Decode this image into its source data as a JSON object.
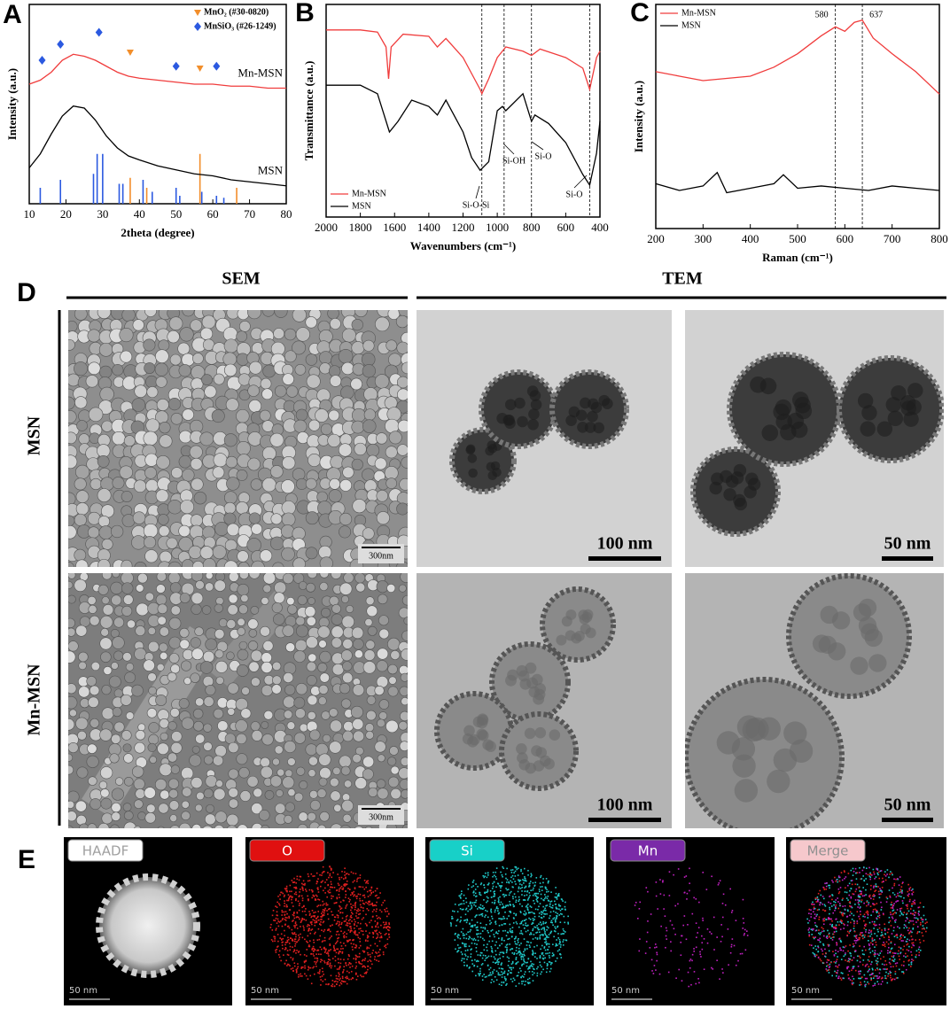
{
  "chart_data": [
    {
      "type": "line",
      "panel": "A",
      "xlabel": "2theta (degree)",
      "ylabel": "Intensity (a.u.)",
      "xlim": [
        10,
        80
      ],
      "xticks": [
        10,
        20,
        30,
        40,
        50,
        60,
        70,
        80
      ],
      "ylim": [
        0,
        100
      ],
      "series": [
        {
          "name": "Mn-MSN",
          "color": "#f03c3c",
          "x": [
            10,
            13,
            16,
            19,
            22,
            25,
            28,
            31,
            34,
            37,
            40,
            45,
            50,
            55,
            60,
            65,
            70,
            75,
            80
          ],
          "values": [
            60,
            62,
            66,
            72,
            75,
            74,
            72,
            69,
            66,
            64,
            63,
            62,
            61,
            60,
            60,
            59,
            59,
            58,
            58
          ]
        },
        {
          "name": "MSN",
          "color": "#000000",
          "x": [
            10,
            13,
            16,
            19,
            22,
            25,
            28,
            31,
            34,
            37,
            40,
            45,
            50,
            55,
            60,
            65,
            70,
            75,
            80
          ],
          "values": [
            18,
            25,
            35,
            44,
            49,
            48,
            42,
            34,
            28,
            24,
            22,
            19,
            17,
            15,
            14,
            12,
            11,
            10,
            9
          ]
        }
      ],
      "references": [
        {
          "name": "MnO₂ (#30-0820)",
          "color": "#f28e2b",
          "marker": "triangle",
          "marker_x": [
            37.5,
            56.5
          ],
          "marker_y": [
            76,
            68
          ],
          "stick_x": [
            37.5,
            42,
            56.5,
            66.5
          ],
          "stick_heights": [
            13,
            8,
            25,
            8
          ]
        },
        {
          "name": "MnSiO₃ (#26-1249)",
          "color": "#2b59e0",
          "marker": "diamond",
          "marker_x": [
            13.5,
            18.5,
            29,
            50,
            61
          ],
          "marker_y": [
            72,
            80,
            86,
            69,
            69
          ],
          "stick_x": [
            13,
            18.5,
            27.5,
            28.5,
            30,
            34.5,
            35.5,
            41,
            43.5,
            50,
            51,
            57,
            61,
            63
          ],
          "stick_heights": [
            8,
            12,
            15,
            25,
            25,
            10,
            10,
            12,
            6,
            8,
            4,
            6,
            4,
            3
          ]
        }
      ]
    },
    {
      "type": "line",
      "panel": "B",
      "xlabel": "Wavenumbers (cm⁻¹)",
      "ylabel": "Transmittance (a.u.)",
      "xlim": [
        2000,
        400
      ],
      "xticks": [
        2000,
        1800,
        1600,
        1400,
        1200,
        1000,
        800,
        600,
        400
      ],
      "ylim": [
        0,
        100
      ],
      "legend": "bottom-left",
      "series": [
        {
          "name": "Mn-MSN",
          "color": "#f03c3c",
          "x": [
            2000,
            1800,
            1700,
            1650,
            1635,
            1620,
            1550,
            1400,
            1350,
            1300,
            1200,
            1100,
            1090,
            1050,
            1000,
            950,
            850,
            800,
            750,
            600,
            500,
            460,
            420,
            400
          ],
          "values": [
            88,
            88,
            87,
            80,
            65,
            80,
            86,
            85,
            80,
            84,
            75,
            60,
            58,
            65,
            75,
            80,
            78,
            76,
            79,
            75,
            70,
            60,
            75,
            78
          ]
        },
        {
          "name": "MSN",
          "color": "#000000",
          "x": [
            2000,
            1800,
            1700,
            1630,
            1580,
            1500,
            1400,
            1350,
            1300,
            1200,
            1150,
            1100,
            1050,
            1000,
            970,
            950,
            850,
            800,
            780,
            700,
            600,
            500,
            460,
            420,
            400
          ],
          "values": [
            62,
            62,
            58,
            40,
            45,
            55,
            52,
            48,
            55,
            40,
            28,
            22,
            26,
            50,
            52,
            50,
            58,
            45,
            48,
            44,
            35,
            20,
            15,
            30,
            45
          ]
        }
      ],
      "vlines": [
        1090,
        960,
        800,
        460
      ],
      "annotations": [
        "Si-O-Si",
        "Si-OH",
        "Si-O",
        "Si-O"
      ]
    },
    {
      "type": "line",
      "panel": "C",
      "xlabel": "Raman (cm⁻¹)",
      "ylabel": "Intensity (a.u.)",
      "xlim": [
        200,
        800
      ],
      "xticks": [
        200,
        300,
        400,
        500,
        600,
        700,
        800
      ],
      "ylim": [
        0,
        100
      ],
      "legend": "top-left",
      "series": [
        {
          "name": "Mn-MSN",
          "color": "#f03c3c",
          "x": [
            200,
            250,
            300,
            350,
            400,
            450,
            500,
            550,
            580,
            600,
            620,
            637,
            660,
            700,
            750,
            800
          ],
          "values": [
            70,
            68,
            66,
            67,
            68,
            72,
            78,
            86,
            90,
            88,
            92,
            93,
            85,
            78,
            70,
            60
          ]
        },
        {
          "name": "MSN",
          "color": "#000000",
          "x": [
            200,
            250,
            300,
            330,
            350,
            400,
            450,
            470,
            500,
            550,
            600,
            650,
            700,
            750,
            800
          ],
          "values": [
            20,
            17,
            19,
            25,
            16,
            18,
            20,
            24,
            18,
            19,
            18,
            17,
            19,
            18,
            17
          ]
        }
      ],
      "vlines": [
        580,
        637
      ],
      "vline_labels": true
    }
  ],
  "panel_d": {
    "label": "D",
    "columns": [
      "SEM",
      "TEM"
    ],
    "rows": [
      "MSN",
      "Mn-MSN"
    ],
    "scale_bars": [
      [
        "300nm",
        "100 nm",
        "50 nm"
      ],
      [
        "300nm",
        "100 nm",
        "50 nm"
      ]
    ]
  },
  "panel_e": {
    "label": "E",
    "channels": [
      "HAADF",
      "O",
      "Si",
      "Mn",
      "Merge"
    ],
    "scale_bar": "50 nm"
  }
}
